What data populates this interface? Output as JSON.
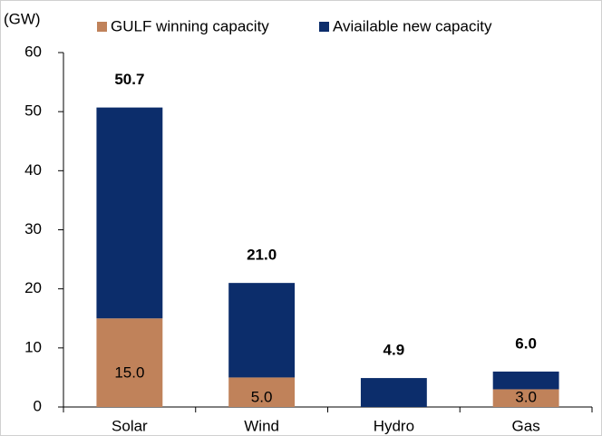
{
  "chart_data": {
    "type": "stacked_bar",
    "y_label": "(GW)",
    "categories": [
      "Solar",
      "Wind",
      "Hydro",
      "Gas"
    ],
    "series": [
      {
        "name": "GULF winning capacity",
        "color": "#c0825a",
        "values": [
          15.0,
          5.0,
          0,
          3.0
        ],
        "value_labels": [
          "15.0",
          "5.0",
          "-",
          "3.0"
        ]
      },
      {
        "name": "Aviailable new capacity",
        "color": "#0c2d6b",
        "values": [
          35.7,
          16.0,
          4.9,
          3.0
        ]
      }
    ],
    "total_labels": [
      "50.7",
      "21.0",
      "4.9",
      "6.0"
    ],
    "ylim": [
      0,
      60
    ],
    "yticks": [
      0,
      10,
      20,
      30,
      40,
      50,
      60
    ],
    "grid": false
  }
}
